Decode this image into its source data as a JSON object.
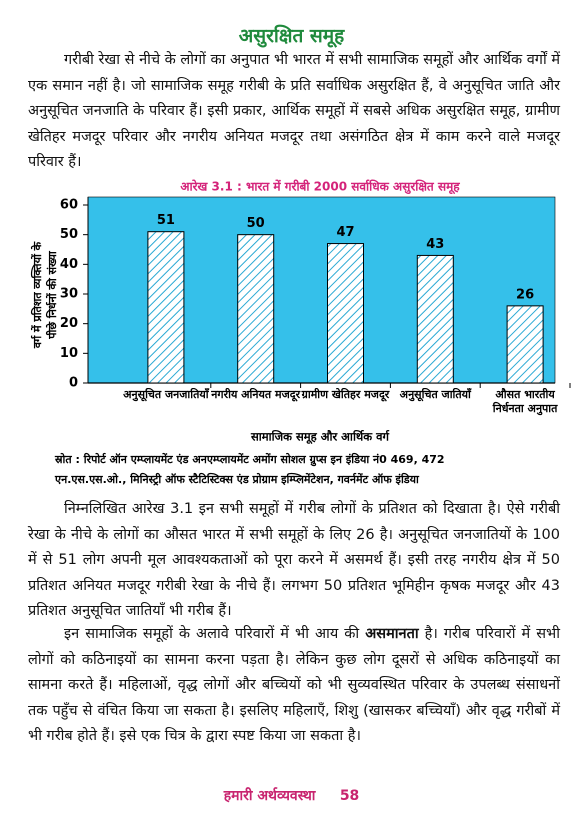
{
  "heading": "असुरक्षित समूह",
  "paragraphs": [
    "गरीबी रेखा से नीचे के लोगों का अनुपात भी भारत में सभी सामाजिक समूहों और आर्थिक वर्गों में एक समान नहीं है। जो सामाजिक समूह गरीबी के प्रति सर्वाधिक असुरक्षित हैं, वे अनुसूचित जाति और अनुसूचित जनजाति के परिवार हैं। इसी प्रकार, आर्थिक समूहों में सबसे अधिक असुरक्षित समूह, ग्रामीण खेतिहर मजदूर परिवार और नगरीय अनियत मजदूर तथा असंगठित क्षेत्र में काम करने वाले मजदूर परिवार हैं।",
    "निम्नलिखित आरेख 3.1 इन सभी समूहों में गरीब लोगों के प्रतिशत को दिखाता है। ऐसे गरीबी रेखा के नीचे के लोगों का औसत भारत में सभी समूहों के लिए 26 है। अनुसूचित जनजातियों के 100 में से 51 लोग अपनी मूल आवश्यकताओं को पूरा करने में असमर्थ हैं। इसी तरह नगरीय क्षेत्र में 50 प्रतिशत अनियत मजदूर गरीबी रेखा के नीचे हैं। लगभग 50 प्रतिशत भूमिहीन कृषक मजदूर और 43 प्रतिशत अनुसूचित जातियाँ भी गरीब हैं।",
    [
      "इन सामाजिक समूहों के अलावे परिवारों में भी आय की ",
      "असमानता",
      " है। गरीब परिवारों में सभी लोगों को कठिनाइयों का सामना करना पड़ता है। लेकिन कुछ लोग दूसरों से अधिक कठिनाइयों का सामना करते हैं। महिलाओं, वृद्ध लोगों और बच्चियों को भी सुव्यवस्थित परिवार के उपलब्ध संसाधनों तक पहुँच से वंचित किया जा सकता है। इसलिए महिलाएँ, शिशु (खासकर बच्चियाँ) और वृद्ध गरीबों में भी गरीब होते हैं। इसे एक चित्र के द्वारा स्पष्ट किया जा सकता है।"
    ]
  ],
  "chart_data": {
    "type": "bar",
    "title": "आरेख 3.1 : भारत में गरीबी 2000 सर्वाधिक असुरक्षित समूह",
    "ylabel": [
      "वर्ग में प्रतिशत व्यक्तियों के",
      "पीछे निर्धनों की संख्या"
    ],
    "xlabel": "सामाजिक समूह और आर्थिक वर्ग",
    "categories": [
      "अनुसूचित जनजातियाँ",
      "नगरीय अनियत मजदूर",
      "ग्रामीण खेतिहर मजदूर",
      "अनुसूचित जातियाँ",
      "औसत भारतीय निर्धनता अनुपात"
    ],
    "values": [
      51,
      50,
      47,
      43,
      26
    ],
    "ylim": [
      0,
      60
    ],
    "yticks": [
      0,
      10,
      20,
      30,
      40,
      50,
      60
    ],
    "color": "#35c0ea"
  },
  "source": [
    "स्रोत : रिपोर्ट ऑन एम्प्लायमेंट एंड अनएम्प्लायमेंट अमोंग सोशल ग्रुप्स इन इंडिया नं0 469, 472",
    "एन.एस.एस.ओ., मिनिस्ट्री ऑफ स्टैटिस्टिक्स एंड प्रोग्राम इम्प्लिमेंटेशन, गवर्नमेंट ऑफ इंडिया"
  ],
  "footer": {
    "book": "हमारी अर्थव्यवस्था",
    "page": "58"
  }
}
